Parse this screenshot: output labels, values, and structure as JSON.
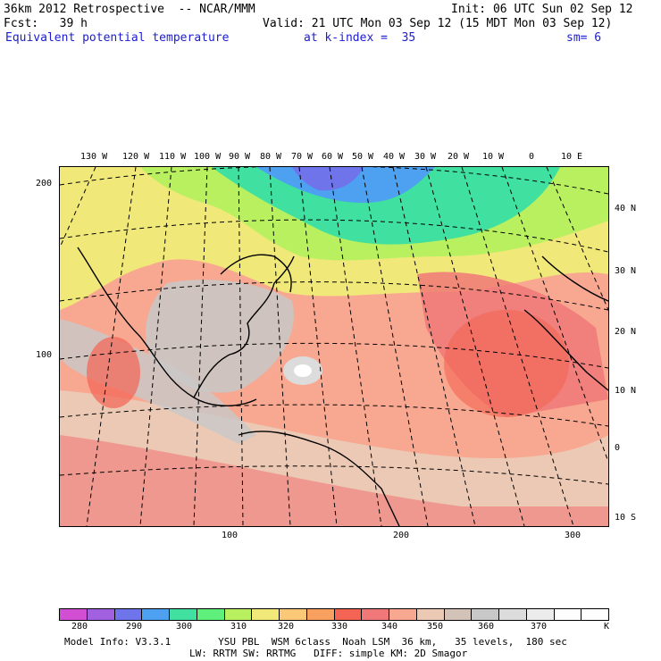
{
  "header": {
    "title": "36km 2012 Retrospective  -- NCAR/MMM",
    "init": "Init: 06 UTC Sun 02 Sep 12",
    "fcst": "Fcst:   39 h",
    "valid": "Valid: 21 UTC Mon 03 Sep 12 (15 MDT Mon 03 Sep 12)",
    "field": "Equivalent potential temperature",
    "level": "at k-index =  35",
    "smooth": "sm= 6"
  },
  "map": {
    "lon_labels": [
      "130 W",
      "120 W",
      "110 W",
      "100 W",
      "90 W",
      "80 W",
      "70 W",
      "60 W",
      "50 W",
      "40 W",
      "30 W",
      "20 W",
      "10 W",
      "0",
      "10 E"
    ],
    "lat_labels": [
      "40 N",
      "30 N",
      "20 N",
      "10 N",
      "0",
      "10 S"
    ],
    "grid_y_labels": [
      "200",
      "100"
    ],
    "grid_x_labels": [
      "100",
      "200",
      "300"
    ]
  },
  "legend": {
    "labels": [
      "280",
      "290",
      "300",
      "310",
      "320",
      "330",
      "340",
      "350",
      "360",
      "370"
    ],
    "unit": "K",
    "colors": [
      "#d24ed2",
      "#a060e0",
      "#6f74ea",
      "#4ea0f0",
      "#3fe0a0",
      "#5ef07a",
      "#b8f060",
      "#f0e878",
      "#fbc878",
      "#f8a060",
      "#f36454",
      "#f07878",
      "#f8a890",
      "#ecc9b4",
      "#d2c2b8",
      "#c8c8c8",
      "#dcdcdc",
      "#ececec",
      "#ffffff",
      "#ffffff"
    ]
  },
  "footer": {
    "line1": "Model Info: V3.3.1        YSU PBL  WSM 6class  Noah LSM  36 km,   35 levels,  180 sec",
    "line2": "LW: RRTM SW: RRTMG   DIFF: simple KM: 2D Smagor"
  }
}
